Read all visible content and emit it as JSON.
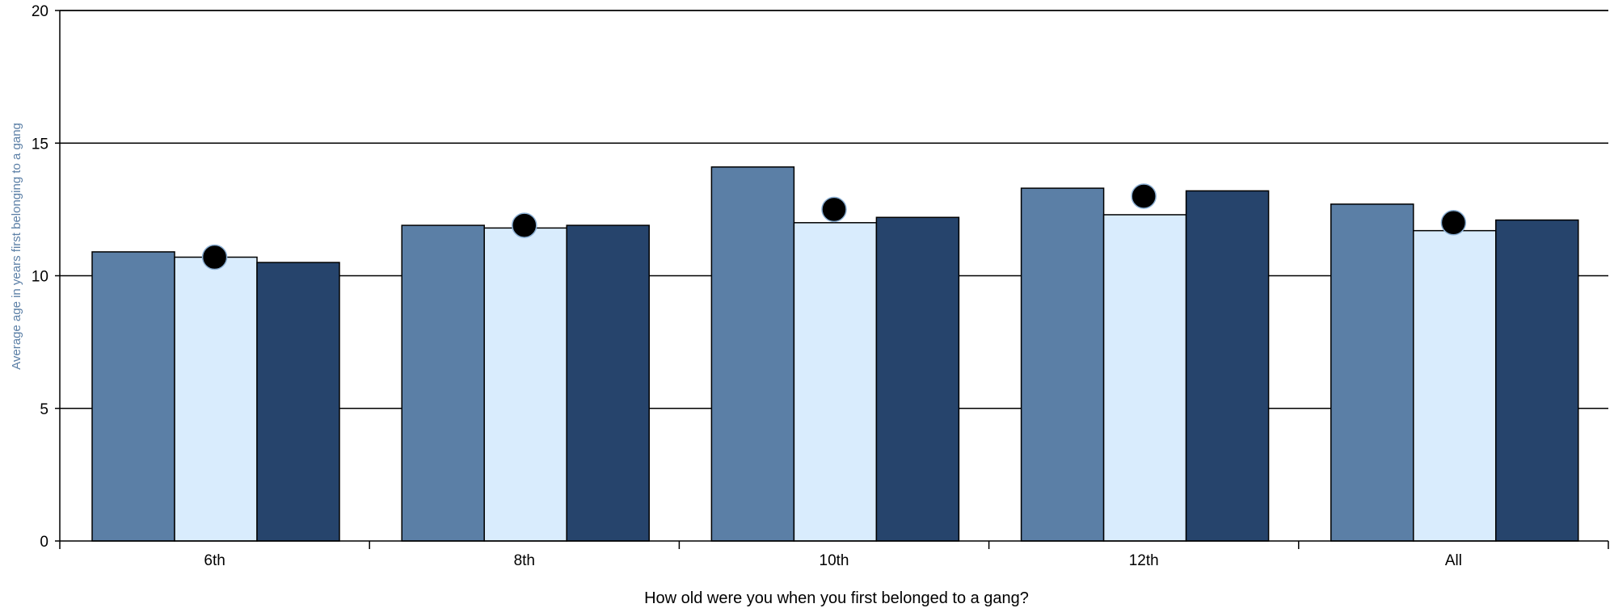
{
  "chart_data": {
    "type": "bar",
    "title": "",
    "xlabel": "How old were you when you first belonged to a gang?",
    "ylabel": "Average age in years first belonging to a gang",
    "ylim": [
      0,
      20
    ],
    "yticks": [
      0,
      5,
      10,
      15,
      20
    ],
    "grid": "horizontal",
    "categories": [
      "6th",
      "8th",
      "10th",
      "12th",
      "All"
    ],
    "series": [
      {
        "values": [
          10.9,
          11.9,
          14.1,
          13.3,
          12.7
        ]
      },
      {
        "values": [
          10.7,
          11.8,
          12.0,
          12.3,
          11.7
        ]
      },
      {
        "values": [
          10.5,
          11.9,
          12.2,
          13.2,
          12.1
        ]
      }
    ],
    "markers": {
      "values": [
        10.7,
        11.9,
        12.5,
        13.0,
        12.0
      ]
    }
  },
  "colors": {
    "series": [
      "#5b7fa6",
      "#d9ecfd",
      "#26446c"
    ],
    "marker": "#000000",
    "marker_outline": "#8aaed2",
    "ylabel": "#5b7fa6"
  }
}
